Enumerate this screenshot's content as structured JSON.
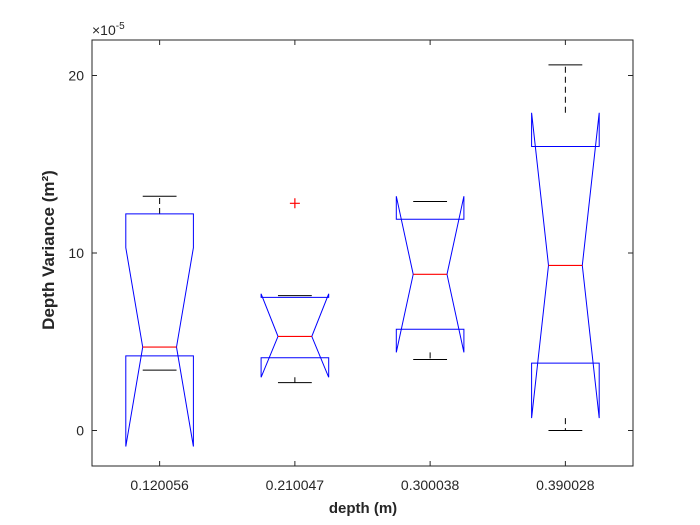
{
  "chart_data": {
    "type": "boxplot",
    "notched": true,
    "title": "",
    "xlabel": "depth (m)",
    "ylabel": "Depth Variance (m²)",
    "exponent_label": "×10",
    "exponent_value": "-5",
    "ylim": [
      -2,
      22
    ],
    "yticks": [
      0,
      10,
      20
    ],
    "ytick_labels": [
      "0",
      "10",
      "20"
    ],
    "categories": [
      "0.120056",
      "0.210047",
      "0.300038",
      "0.390028"
    ],
    "boxes": [
      {
        "label": "0.120056",
        "whisker_low": 3.4,
        "q1": 4.2,
        "median": 4.7,
        "q3": 12.2,
        "whisker_high": 13.2,
        "notch_low": -0.9,
        "notch_high": 10.3,
        "outliers": []
      },
      {
        "label": "0.210047",
        "whisker_low": 2.7,
        "q1": 4.1,
        "median": 5.3,
        "q3": 7.5,
        "whisker_high": 7.6,
        "notch_low": 3.0,
        "notch_high": 7.7,
        "outliers": [
          12.8
        ]
      },
      {
        "label": "0.300038",
        "whisker_low": 4.0,
        "q1": 5.7,
        "median": 8.8,
        "q3": 11.9,
        "whisker_high": 12.9,
        "notch_low": 4.4,
        "notch_high": 13.2,
        "outliers": []
      },
      {
        "label": "0.390028",
        "whisker_low": 0.0,
        "q1": 3.8,
        "median": 9.3,
        "q3": 16.0,
        "whisker_high": 20.6,
        "notch_low": 0.7,
        "notch_high": 17.9,
        "outliers": []
      }
    ],
    "colors": {
      "box": "#0000ff",
      "median": "#ff0000",
      "whisker": "#000000",
      "outlier": "#ff0000",
      "axis": "#262626"
    },
    "grid": false,
    "legend": "none"
  }
}
